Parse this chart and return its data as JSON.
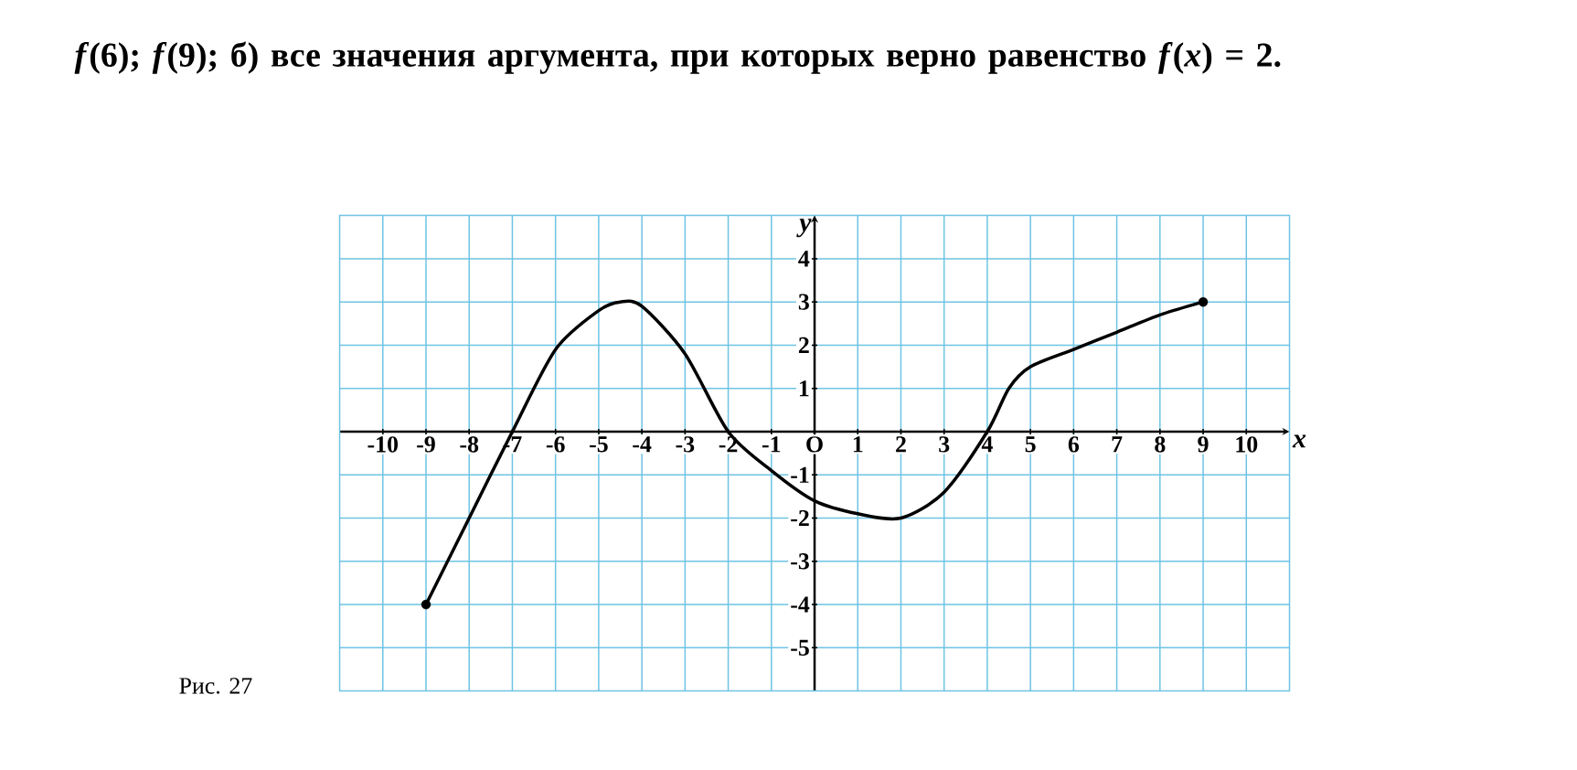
{
  "chart_data": {
    "type": "line",
    "title": "*f*(6); *f*(9); б) все значения аргумента, при которых верно равенство *f*(*x*) = 2.",
    "annotations": [
      "Рис. 27"
    ],
    "xlabel": "x",
    "ylabel": "y",
    "xlim": [
      -11,
      11
    ],
    "ylim": [
      -6,
      5
    ],
    "xticks": [
      -10,
      -9,
      -8,
      -7,
      -6,
      -5,
      -4,
      -3,
      -2,
      -1,
      {
        "value": 0,
        "label": "O"
      },
      1,
      2,
      3,
      4,
      5,
      6,
      7,
      8,
      9,
      10
    ],
    "yticks": [
      -5,
      -4,
      -3,
      -2,
      -1,
      1,
      2,
      3,
      4
    ],
    "grid": true,
    "series": [
      {
        "color": "#000000",
        "marker": "none",
        "x": [
          -9,
          -8,
          -7,
          -6,
          -5,
          -4.5,
          -4,
          -3,
          -2,
          -1,
          0,
          1,
          2,
          3,
          4,
          4.5,
          5,
          6,
          7,
          8,
          9
        ],
        "values": [
          -4,
          -2,
          0,
          1.9,
          2.8,
          3,
          2.9,
          1.8,
          0,
          -0.9,
          -1.6,
          -1.9,
          -2,
          -1.4,
          0,
          1,
          1.5,
          1.9,
          2.3,
          2.7,
          3
        ]
      },
      {
        "type": "scatter",
        "color": "#000000",
        "marker": "circle",
        "x": [
          -9,
          9
        ],
        "values": [
          -4,
          3
        ]
      }
    ]
  }
}
